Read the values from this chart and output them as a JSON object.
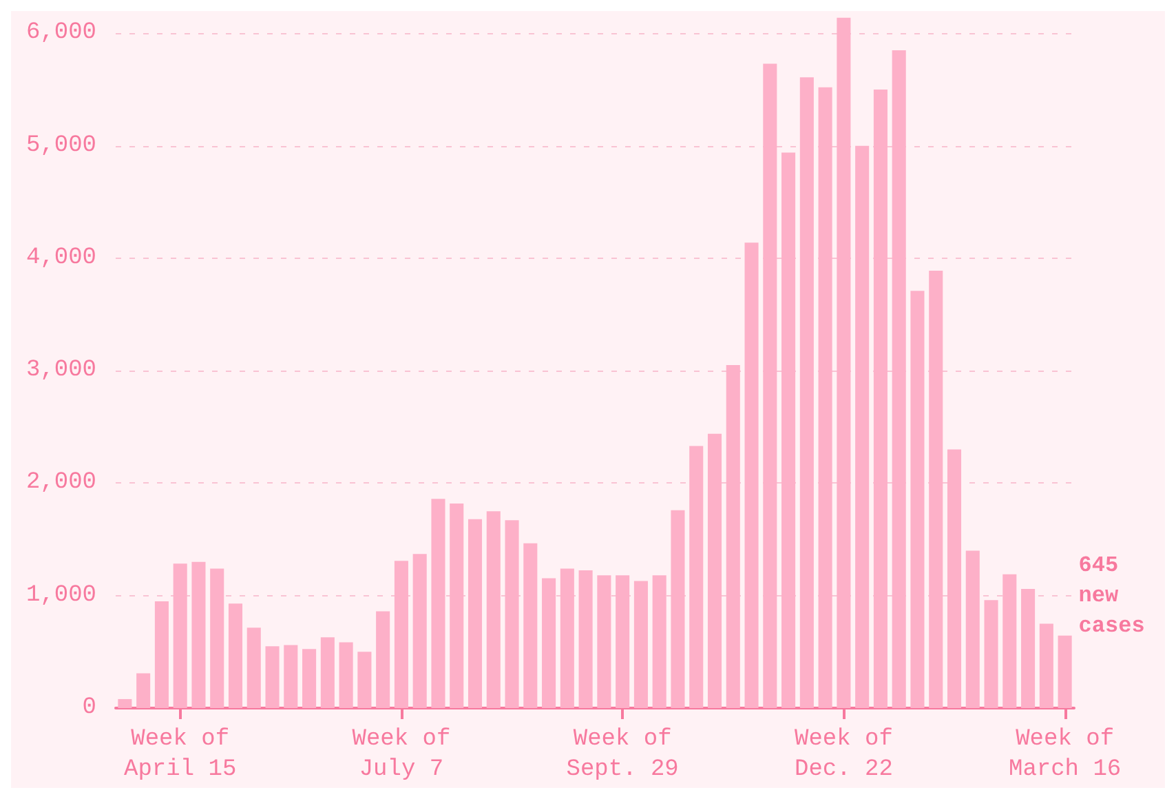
{
  "chart_data": {
    "type": "bar",
    "categories": [
      null,
      null,
      null,
      "Week of\nApril 15",
      null,
      null,
      null,
      null,
      null,
      null,
      null,
      null,
      null,
      null,
      null,
      "Week of\nJuly 7",
      null,
      null,
      null,
      null,
      null,
      null,
      null,
      null,
      null,
      null,
      null,
      "Week of\nSept. 29",
      null,
      null,
      null,
      null,
      null,
      null,
      null,
      null,
      null,
      null,
      null,
      "Week of\nDec. 22",
      null,
      null,
      null,
      null,
      null,
      null,
      null,
      null,
      null,
      null,
      null,
      "Week of\nMarch 16"
    ],
    "values": [
      80,
      310,
      950,
      1285,
      1300,
      1240,
      930,
      715,
      550,
      560,
      525,
      630,
      585,
      500,
      860,
      1310,
      1370,
      1860,
      1820,
      1680,
      1750,
      1670,
      1465,
      1155,
      1240,
      1225,
      1180,
      1180,
      1130,
      1180,
      1760,
      2330,
      2440,
      3050,
      4140,
      5730,
      4940,
      5610,
      5520,
      6140,
      5000,
      5500,
      5850,
      3710,
      3890,
      2300,
      1400,
      960,
      1190,
      1060,
      750,
      645
    ],
    "color": "#fdb0c8",
    "ylim": [
      0,
      6150
    ],
    "yticks": [
      0,
      {
        "value": 1000,
        "label": "1,000"
      },
      {
        "value": 2000,
        "label": "2,000"
      },
      {
        "value": 3000,
        "label": "3,000"
      },
      {
        "value": 4000,
        "label": "4,000"
      },
      {
        "value": 5000,
        "label": "5,000"
      },
      {
        "value": 6000,
        "label": "6,000"
      }
    ],
    "grid": "y",
    "annotations": [
      {
        "text": "645\nnew\ncases",
        "x": "Week of\nMarch 16",
        "y": 645
      }
    ]
  }
}
